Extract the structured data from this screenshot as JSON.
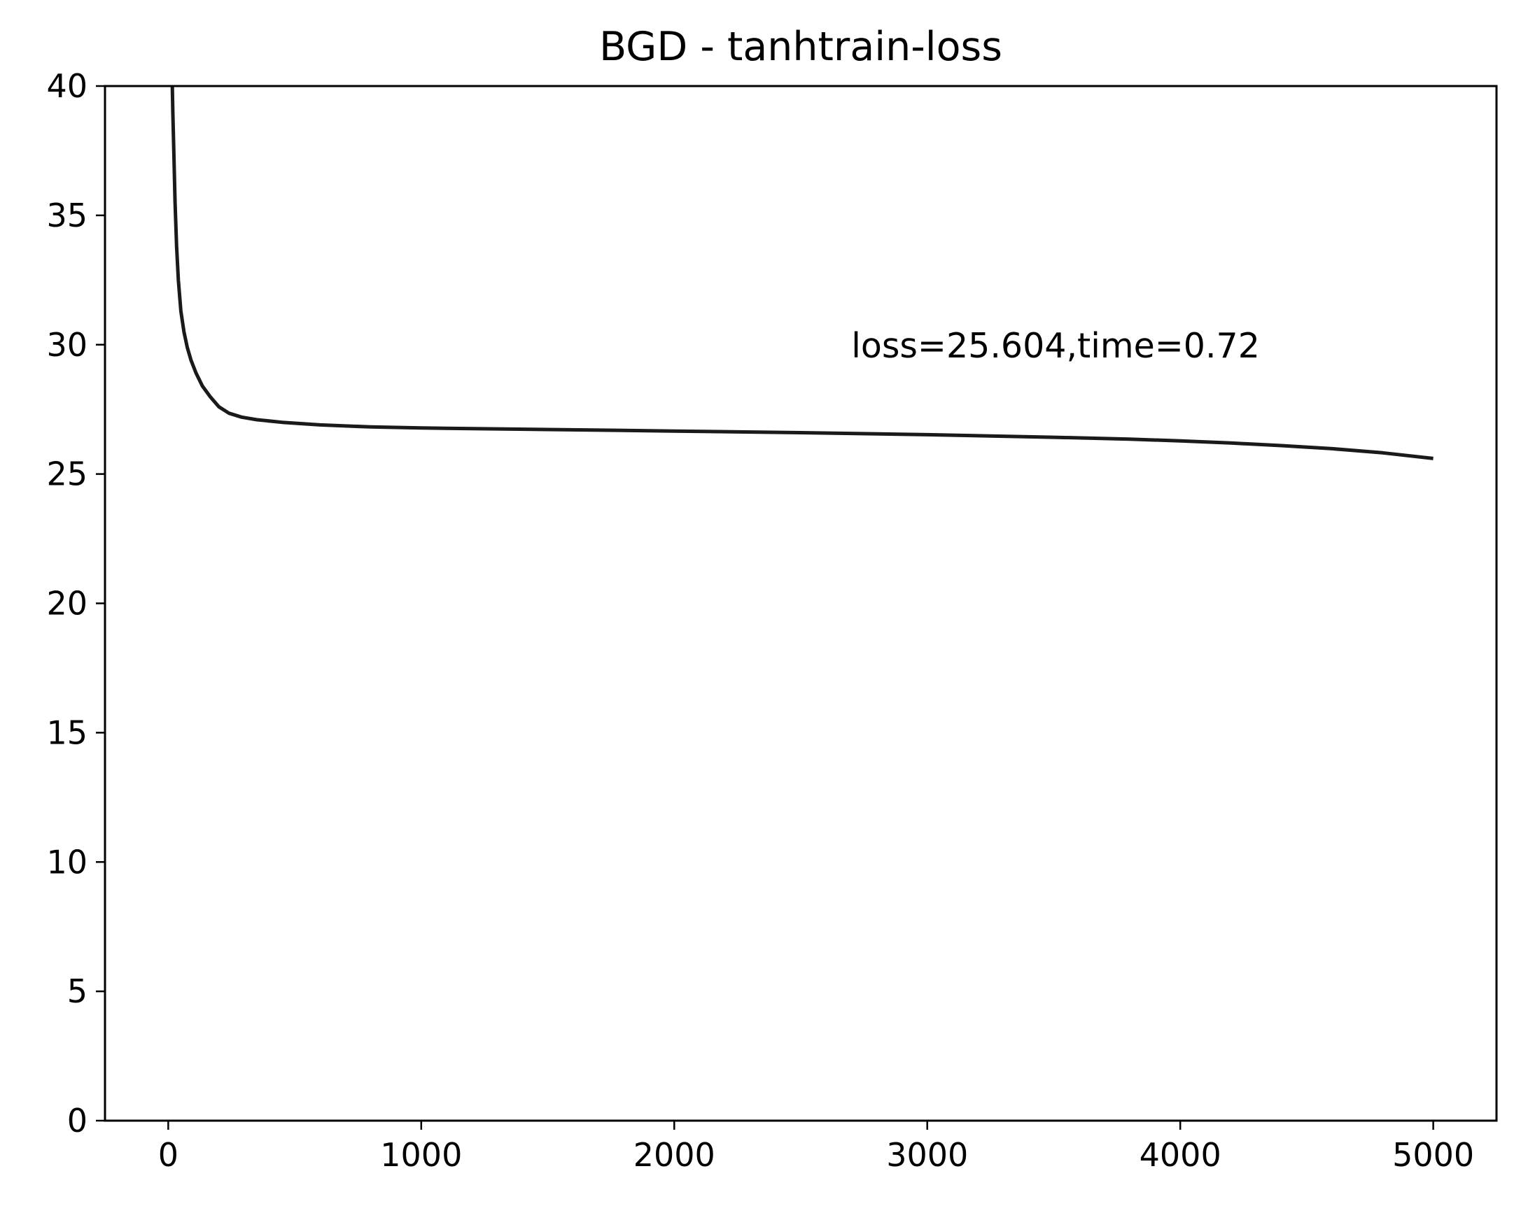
{
  "chart_data": {
    "type": "line",
    "title": "BGD - tanhtrain-loss",
    "xlabel": "",
    "ylabel": "",
    "xlim": [
      -250,
      5250
    ],
    "ylim": [
      0,
      40
    ],
    "x_ticks": [
      0,
      1000,
      2000,
      3000,
      4000,
      5000
    ],
    "x_tick_labels": [
      "0",
      "1000",
      "2000",
      "3000",
      "4000",
      "5000"
    ],
    "y_ticks": [
      0,
      5,
      10,
      15,
      20,
      25,
      30,
      35,
      40
    ],
    "y_tick_labels": [
      "0",
      "5",
      "10",
      "15",
      "20",
      "25",
      "30",
      "35",
      "40"
    ],
    "grid": false,
    "legend": "none",
    "annotation": {
      "text": "loss=25.604,time=0.72",
      "x": 2700,
      "y": 29.5
    },
    "series": [
      {
        "color": "#1a1a1a",
        "x": [
          15,
          18,
          22,
          27,
          33,
          40,
          50,
          62,
          75,
          90,
          110,
          135,
          165,
          200,
          240,
          290,
          350,
          450,
          600,
          800,
          1000,
          1500,
          2000,
          2500,
          3000,
          3500,
          3800,
          4000,
          4200,
          4400,
          4600,
          4800,
          5000
        ],
        "y": [
          40.5,
          39.0,
          37.5,
          35.5,
          33.8,
          32.5,
          31.3,
          30.5,
          29.9,
          29.4,
          28.9,
          28.4,
          28.0,
          27.6,
          27.35,
          27.2,
          27.1,
          27.0,
          26.9,
          26.82,
          26.78,
          26.72,
          26.66,
          26.6,
          26.52,
          26.42,
          26.35,
          26.28,
          26.2,
          26.1,
          25.98,
          25.82,
          25.6
        ]
      }
    ]
  }
}
